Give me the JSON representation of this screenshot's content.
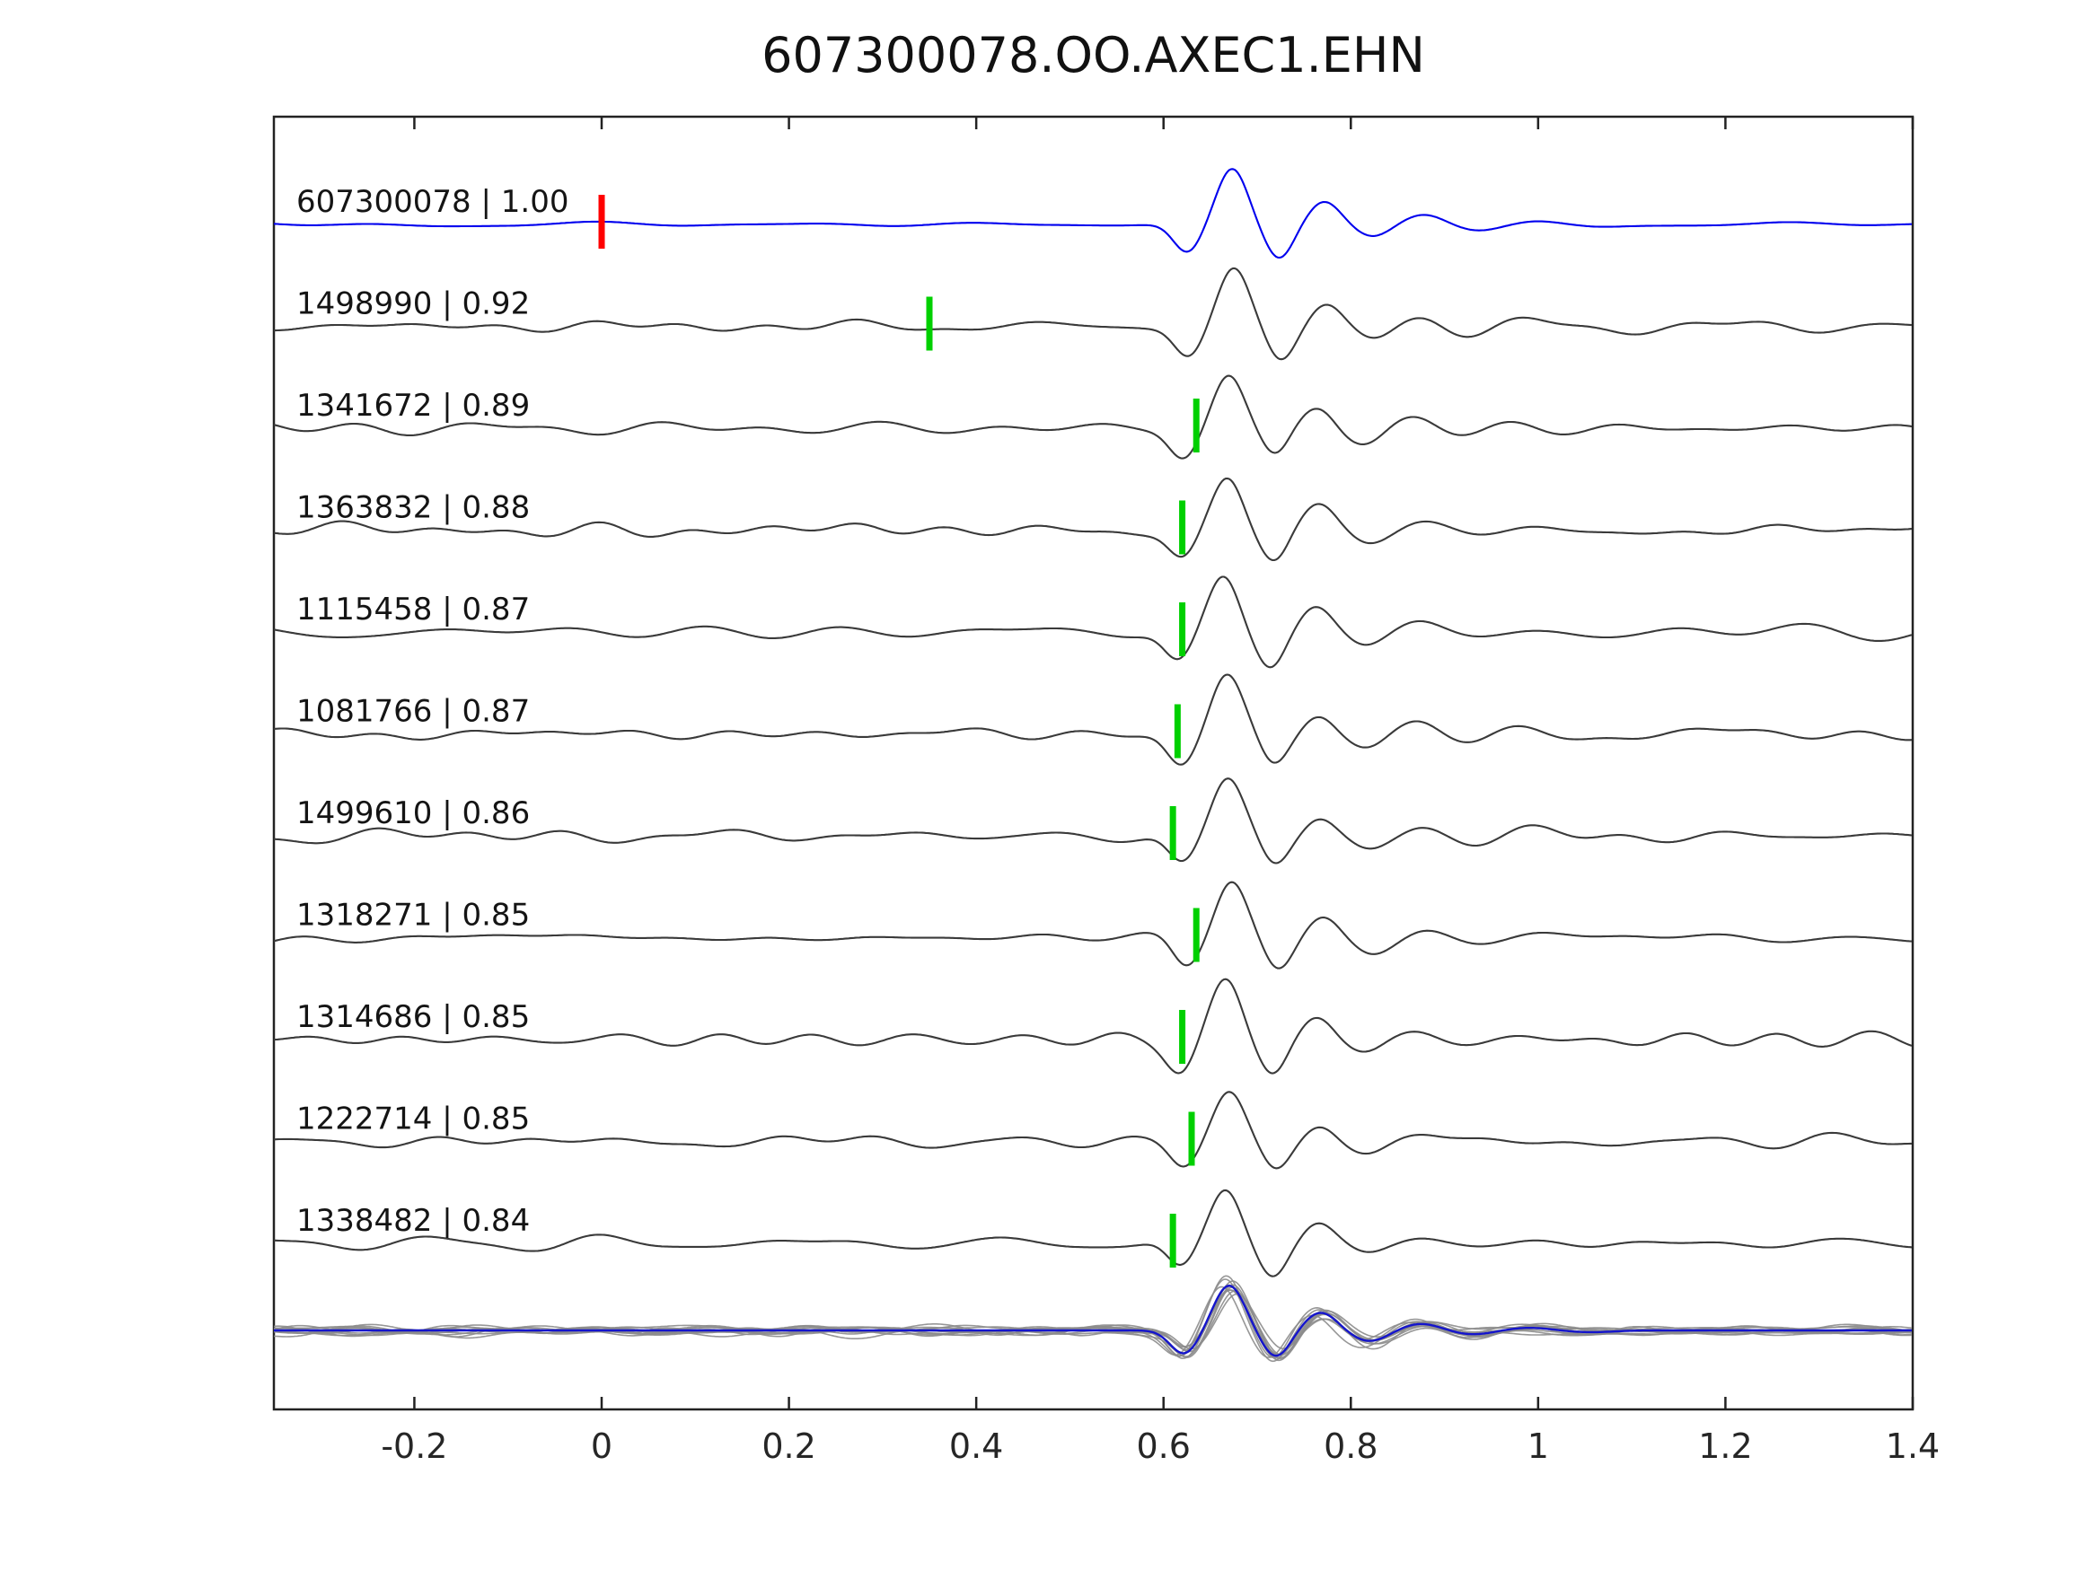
{
  "figure": {
    "title": "607300078.OO.AXEC1.EHN"
  },
  "chart_data": {
    "type": "line",
    "title": "607300078.OO.AXEC1.EHN",
    "subtitle": "",
    "xlabel": "",
    "ylabel": "",
    "xlim": [
      -0.35,
      1.4
    ],
    "grid": false,
    "legend": null,
    "x_ticks": [
      {
        "value": -0.2,
        "label": "-0.2"
      },
      {
        "value": 0,
        "label": "0"
      },
      {
        "value": 0.2,
        "label": "0.2"
      },
      {
        "value": 0.4,
        "label": "0.4"
      },
      {
        "value": 0.6,
        "label": "0.6"
      },
      {
        "value": 0.8,
        "label": "0.8"
      },
      {
        "value": 1,
        "label": "1"
      },
      {
        "value": 1.2,
        "label": "1.2"
      },
      {
        "value": 1.4,
        "label": "1.4"
      }
    ],
    "traces": [
      {
        "id": "607300078",
        "cc": "1.00",
        "label": "607300078 | 1.00",
        "color": "#0000ee",
        "pick": 0.0,
        "pick_color": "#ff0000",
        "is_template": true
      },
      {
        "id": "1498990",
        "cc": "0.92",
        "label": "1498990 | 0.92",
        "color": "#3a3a3a",
        "pick": 0.35,
        "pick_color": "#00d000",
        "is_template": false
      },
      {
        "id": "1341672",
        "cc": "0.89",
        "label": "1341672 | 0.89",
        "color": "#3a3a3a",
        "pick": 0.635,
        "pick_color": "#00d000",
        "is_template": false
      },
      {
        "id": "1363832",
        "cc": "0.88",
        "label": "1363832 | 0.88",
        "color": "#3a3a3a",
        "pick": 0.62,
        "pick_color": "#00d000",
        "is_template": false
      },
      {
        "id": "1115458",
        "cc": "0.87",
        "label": "1115458 | 0.87",
        "color": "#3a3a3a",
        "pick": 0.62,
        "pick_color": "#00d000",
        "is_template": false
      },
      {
        "id": "1081766",
        "cc": "0.87",
        "label": "1081766 | 0.87",
        "color": "#3a3a3a",
        "pick": 0.615,
        "pick_color": "#00d000",
        "is_template": false
      },
      {
        "id": "1499610",
        "cc": "0.86",
        "label": "1499610 | 0.86",
        "color": "#3a3a3a",
        "pick": 0.61,
        "pick_color": "#00d000",
        "is_template": false
      },
      {
        "id": "1318271",
        "cc": "0.85",
        "label": "1318271 | 0.85",
        "color": "#3a3a3a",
        "pick": 0.635,
        "pick_color": "#00d000",
        "is_template": false
      },
      {
        "id": "1314686",
        "cc": "0.85",
        "label": "1314686 | 0.85",
        "color": "#3a3a3a",
        "pick": 0.62,
        "pick_color": "#00d000",
        "is_template": false
      },
      {
        "id": "1222714",
        "cc": "0.85",
        "label": "1222714 | 0.85",
        "color": "#3a3a3a",
        "pick": 0.63,
        "pick_color": "#00d000",
        "is_template": false
      },
      {
        "id": "1338482",
        "cc": "0.84",
        "label": "1338482 | 0.84",
        "color": "#3a3a3a",
        "pick": 0.61,
        "pick_color": "#00d000",
        "is_template": false
      }
    ],
    "stack_overlay": {
      "description": "all aligned traces overlaid in gray with blue mean stack",
      "trace_color": "#8c8c8c",
      "mean_color": "#1414cc"
    },
    "wavelet_shape": {
      "arrival_time": 0.67,
      "bumps": [
        {
          "t": 0.622,
          "w": 0.021,
          "a": -0.52
        },
        {
          "t": 0.67,
          "w": 0.023,
          "a": 1.0
        },
        {
          "t": 0.72,
          "w": 0.021,
          "a": -0.58
        },
        {
          "t": 0.768,
          "w": 0.024,
          "a": 0.4
        },
        {
          "t": 0.82,
          "w": 0.027,
          "a": -0.24
        },
        {
          "t": 0.875,
          "w": 0.029,
          "a": 0.15
        },
        {
          "t": 0.93,
          "w": 0.031,
          "a": -0.09
        },
        {
          "t": 0.99,
          "w": 0.033,
          "a": 0.06
        },
        {
          "t": 1.055,
          "w": 0.035,
          "a": -0.04
        }
      ]
    },
    "colors": {
      "template_trace": "#0000ee",
      "matched_trace": "#3a3a3a",
      "pick_green": "#00d000",
      "pick_red": "#ff0000",
      "frame": "#222222"
    }
  }
}
